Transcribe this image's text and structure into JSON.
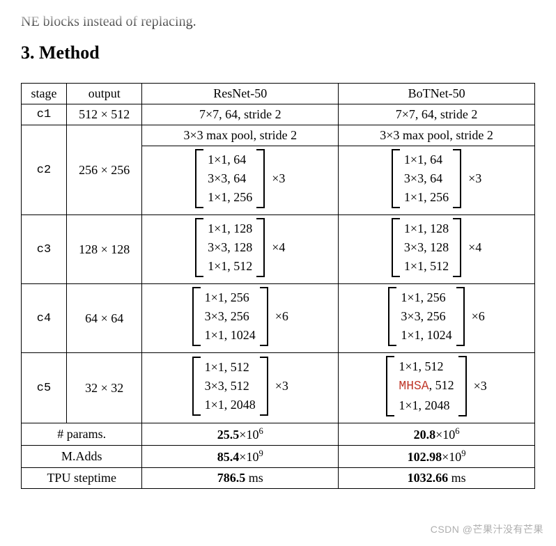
{
  "faded_text": "NE blocks instead of replacing.",
  "section_heading": "3. Method",
  "header": {
    "stage": "stage",
    "output": "output",
    "resnet": "ResNet-50",
    "botnet": "BoTNet-50"
  },
  "row_c1": {
    "stage": "c1",
    "output": "512 × 512",
    "resnet": "7×7, 64, stride 2",
    "botnet": "7×7, 64, stride 2"
  },
  "row_c2": {
    "stage": "c2",
    "output": "256 × 256",
    "pool_resnet": "3×3 max pool, stride 2",
    "pool_botnet": "3×3 max pool, stride 2",
    "block_resnet": {
      "l1": "1×1, 64",
      "l2": "3×3, 64",
      "l3": "1×1, 256",
      "mult": "×3"
    },
    "block_botnet": {
      "l1": "1×1, 64",
      "l2": "3×3, 64",
      "l3": "1×1, 256",
      "mult": "×3"
    }
  },
  "row_c3": {
    "stage": "c3",
    "output": "128 × 128",
    "block_resnet": {
      "l1": "1×1, 128",
      "l2": "3×3, 128",
      "l3": "1×1, 512",
      "mult": "×4"
    },
    "block_botnet": {
      "l1": "1×1, 128",
      "l2": "3×3, 128",
      "l3": "1×1, 512",
      "mult": "×4"
    }
  },
  "row_c4": {
    "stage": "c4",
    "output": "64 × 64",
    "block_resnet": {
      "l1": "1×1, 256",
      "l2": "3×3, 256",
      "l3": "1×1, 1024",
      "mult": "×6"
    },
    "block_botnet": {
      "l1": "1×1, 256",
      "l2": "3×3, 256",
      "l3": "1×1, 1024",
      "mult": "×6"
    }
  },
  "row_c5": {
    "stage": "c5",
    "output": "32 × 32",
    "block_resnet": {
      "l1": "1×1, 512",
      "l2": "3×3, 512",
      "l3": "1×1, 2048",
      "mult": "×3"
    },
    "block_botnet": {
      "l1": "1×1, 512",
      "l2a": "MHSA",
      "l2b": ", 512",
      "l3": "1×1, 2048",
      "mult": "×3"
    }
  },
  "footer": {
    "params_label": "# params.",
    "params_resnet_base": "25.5",
    "params_resnet_exp": "6",
    "params_botnet_base": "20.8",
    "params_botnet_exp": "6",
    "madds_label": "M.Adds",
    "madds_resnet_base": "85.4",
    "madds_resnet_exp": "9",
    "madds_botnet_base": "102.98",
    "madds_botnet_exp": "9",
    "tpu_label": "TPU steptime",
    "tpu_resnet_val": "786.5",
    "tpu_resnet_unit": " ms",
    "tpu_botnet_val": "1032.66",
    "tpu_botnet_unit": " ms"
  },
  "watermark": "CSDN @芒果汁没有芒果"
}
